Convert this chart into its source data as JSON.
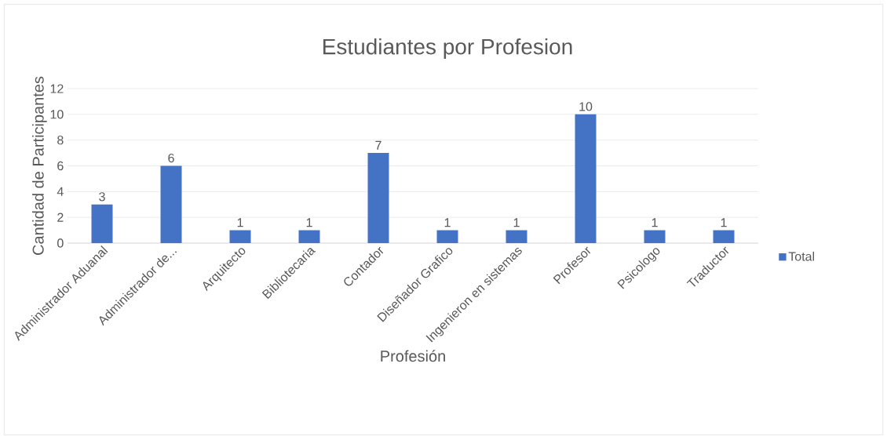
{
  "chart_data": {
    "type": "bar",
    "title": "Estudiantes por Profesion",
    "xlabel": "Profesión",
    "ylabel": "Cantidad de Participantes",
    "categories": [
      "Administrador Aduanal",
      "Administrador de...",
      "Arquitecto",
      "Bibliotecaria",
      "Contador",
      "Diseñador Grafico",
      "Ingenieron en sistemas",
      "Profesor",
      "Psicologo",
      "Traductor"
    ],
    "series": [
      {
        "name": "Total",
        "color": "#4472c4",
        "values": [
          3,
          6,
          1,
          1,
          7,
          1,
          1,
          10,
          1,
          1
        ]
      }
    ],
    "ylim": [
      0,
      12
    ],
    "yticks": [
      0,
      2,
      4,
      6,
      8,
      10,
      12
    ],
    "grid": "y",
    "legend": "right",
    "data_labels": true
  }
}
